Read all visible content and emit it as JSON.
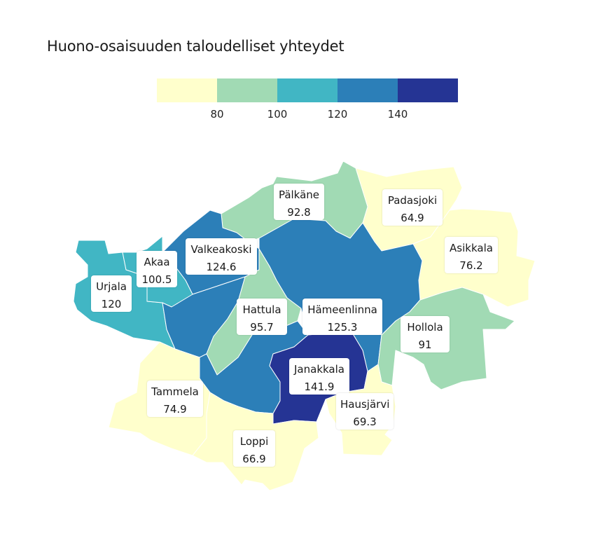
{
  "title": "Huono-osaisuuden taloudelliset yhteydet",
  "legend": {
    "colors": [
      "#ffffcc",
      "#a1dab4",
      "#41b6c4",
      "#2c7fb8",
      "#253494"
    ],
    "ticks": [
      "80",
      "100",
      "120",
      "140"
    ]
  },
  "municipalities": [
    {
      "name": "Pälkäne",
      "value": "92.8",
      "color": "#a1dab4"
    },
    {
      "name": "Padasjoki",
      "value": "64.9",
      "color": "#ffffcc"
    },
    {
      "name": "Asikkala",
      "value": "76.2",
      "color": "#ffffcc"
    },
    {
      "name": "Valkeakoski",
      "value": "124.6",
      "color": "#2c7fb8"
    },
    {
      "name": "Akaa",
      "value": "100.5",
      "color": "#41b6c4"
    },
    {
      "name": "Urjala",
      "value": "120",
      "color": "#41b6c4"
    },
    {
      "name": "Hattula",
      "value": "95.7",
      "color": "#a1dab4"
    },
    {
      "name": "Hämeenlinna",
      "value": "125.3",
      "color": "#2c7fb8"
    },
    {
      "name": "Hollola",
      "value": "91",
      "color": "#a1dab4"
    },
    {
      "name": "Janakkala",
      "value": "141.9",
      "color": "#253494"
    },
    {
      "name": "Tammela",
      "value": "74.9",
      "color": "#ffffcc"
    },
    {
      "name": "Hausjärvi",
      "value": "69.3",
      "color": "#ffffcc"
    },
    {
      "name": "Loppi",
      "value": "66.9",
      "color": "#ffffcc"
    }
  ]
}
